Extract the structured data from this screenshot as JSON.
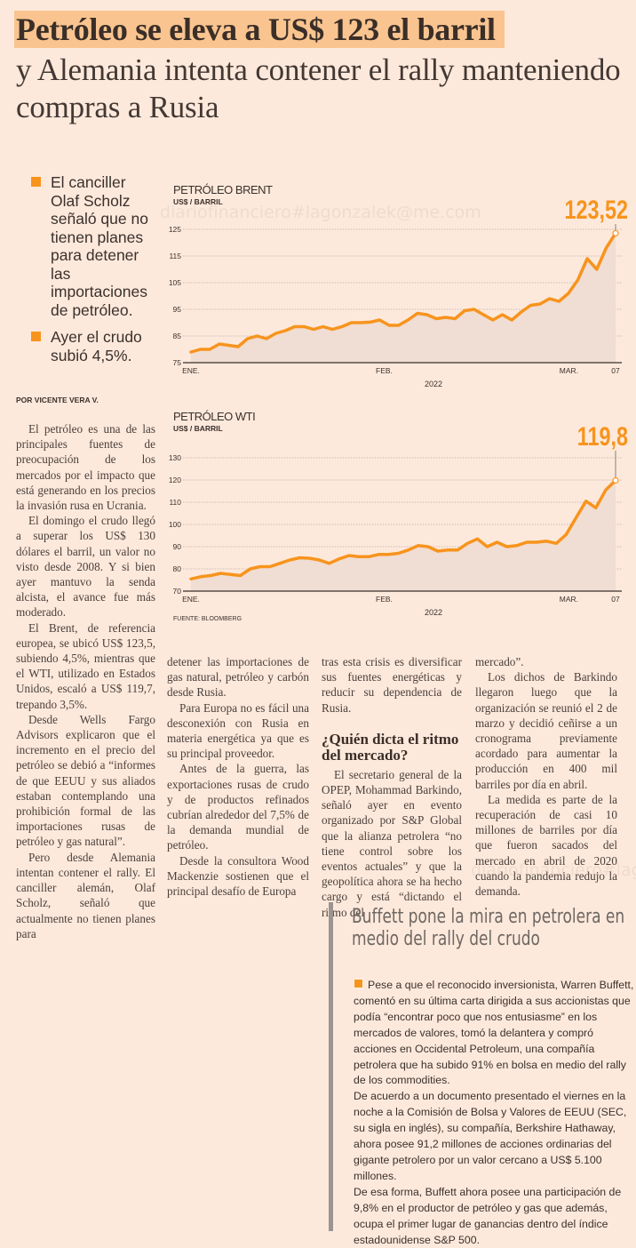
{
  "headline": {
    "title": "Petróleo se eleva a US$ 123 el barril",
    "subtitle": "y Alemania intenta contener el rally manteniendo compras a Rusia"
  },
  "highlights": [
    "El canciller Olaf Scholz señaló que no tienen planes para detener las importaciones de petróleo.",
    "Ayer el crudo subió 4,5%."
  ],
  "byline": "POR VICENTE VERA V.",
  "watermarks": [
    "diariofinanciero#lagonzalek@me.com",
    "diariofinanciero#lagonz"
  ],
  "colors": {
    "accent": "#f7941d",
    "background": "#fde9dc",
    "highlight": "#f9c48f",
    "area": "#f0ddd3"
  },
  "article": {
    "col1": [
      "El petróleo es una de las principales fuentes de preocupación de los mercados por el impacto que está generando en los precios la invasión rusa en Ucrania.",
      "El domingo el crudo llegó a superar los US$ 130 dólares el barril, un valor no visto desde 2008. Y si bien ayer mantuvo la senda alcista, el avance fue más moderado.",
      "El Brent, de referencia europea, se ubicó US$ 123,5, subiendo 4,5%, mientras que el WTI, utilizado en Estados Unidos, escaló a US$ 119,7, trepando 3,5%.",
      "Desde Wells Fargo Advisors explicaron que el incremento en el precio del petróleo se debió a “informes de que EEUU y sus aliados estaban contemplando una prohibición formal de las importaciones rusas de petróleo y gas natural”.",
      "Pero desde Alemania intentan contener el rally. El canciller alemán, Olaf Scholz, señaló que actualmente no tienen planes para"
    ],
    "col2": [
      "detener las importaciones de gas natural, petróleo y carbón desde Rusia.",
      "Para Europa no es fácil una desconexión con Rusia en materia energética ya que es su principal proveedor.",
      "Antes de la guerra, las exportaciones rusas de crudo y de productos refinados cubrían alrededor del 7,5% de la demanda mundial de petróleo.",
      "Desde la consultora Wood Mackenzie sostienen que el principal desafío de Europa"
    ],
    "col3_before": "tras esta crisis es diversificar sus fuentes energéticas y reducir su dependencia de Rusia.",
    "subheading": "¿Quién dicta el ritmo del mercado?",
    "col3_after": "El secretario general de la OPEP, Mohammad Barkindo, señaló ayer en evento organizado por S&P Global que la alianza petrolera “no tiene control sobre los eventos actuales” y que la geopolítica ahora se ha hecho cargo y está “dictando el ritmo del",
    "col4": [
      "mercado”.",
      "Los dichos de Barkindo llegaron luego que la organización se reunió el 2 de marzo y decidió ceñirse a un cronograma previamente acordado para aumentar la producción en 400 mil barriles por día en abril.",
      "La medida es parte de la recuperación de casi 10 millones de barriles por día que fueron sacados del mercado en abril de 2020 cuando la pandemia redujo la demanda."
    ]
  },
  "sidebar": {
    "title": "Buffett pone la mira en petrolera en medio del rally del crudo",
    "paragraphs": [
      "Pese a que el reconocido inversionista, Warren Buffett, comentó en su última carta dirigida a sus accionistas que podía “encontrar poco que nos entusiasme” en los mercados de valores, tomó la delantera y compró acciones en Occidental Petroleum, una compañía petrolera que ha subido 91% en bolsa en medio del rally de los commodities.",
      "De acuerdo a un documento presentado el viernes en la noche a la Comisión de Bolsa y Valores de EEUU (SEC, su sigla en inglés), su compañía, Berkshire Hathaway, ahora posee 91,2 millones de acciones ordinarias del gigante petrolero por un valor cercano a US$ 5.100 millones.",
      "De esa forma, Buffett ahora posee una participación de 9,8% en el productor de petróleo y gas que además, ocupa el primer lugar de ganancias dentro del índice estadounidense S&P 500."
    ]
  },
  "chart_data": [
    {
      "type": "area",
      "title": "PETRÓLEO BRENT",
      "ylabel": "US$ / BARRIL",
      "xlabel": "2022",
      "x_ticks": [
        "ENE.",
        "FEB.",
        "MAR.",
        "07"
      ],
      "x_tick_positions": [
        0,
        0.455,
        0.89,
        1
      ],
      "y_ticks": [
        75,
        85,
        95,
        105,
        115,
        125
      ],
      "ylim": [
        75,
        125
      ],
      "grid": true,
      "last_value_label": "123,52",
      "values": [
        79,
        80,
        80,
        82,
        81.5,
        81,
        84,
        85,
        84,
        86,
        87,
        88.5,
        88.5,
        87.5,
        88.5,
        87.5,
        88.5,
        90,
        90,
        90.2,
        91,
        89,
        89,
        91,
        93.5,
        93,
        91.5,
        92,
        91.5,
        94.5,
        95,
        93,
        91,
        93,
        91,
        94,
        96.5,
        97,
        99,
        98,
        101,
        106,
        114,
        110,
        118,
        123.52
      ]
    },
    {
      "type": "area",
      "title": "PETRÓLEO WTI",
      "ylabel": "US$ / BARRIL",
      "xlabel": "2022",
      "x_ticks": [
        "ENE.",
        "FEB.",
        "MAR.",
        "07"
      ],
      "x_tick_positions": [
        0,
        0.455,
        0.89,
        1
      ],
      "y_ticks": [
        70,
        80,
        90,
        100,
        110,
        120,
        130
      ],
      "ylim": [
        70,
        130
      ],
      "grid": true,
      "last_value_label": "119,8",
      "source": "FUENTE: BLOOMBERG",
      "values": [
        75.5,
        76.5,
        77,
        78,
        77.5,
        77,
        80,
        81,
        81,
        82.5,
        84,
        85,
        84.8,
        84,
        82.5,
        84.5,
        86,
        85.5,
        85.5,
        86.5,
        86.5,
        87,
        88.5,
        90.5,
        90,
        88,
        88.5,
        88.5,
        91.5,
        93.5,
        90,
        92,
        90,
        90.5,
        92,
        92,
        92.5,
        91.5,
        95.5,
        103,
        110.5,
        107.5,
        115.5,
        119.8
      ]
    }
  ]
}
